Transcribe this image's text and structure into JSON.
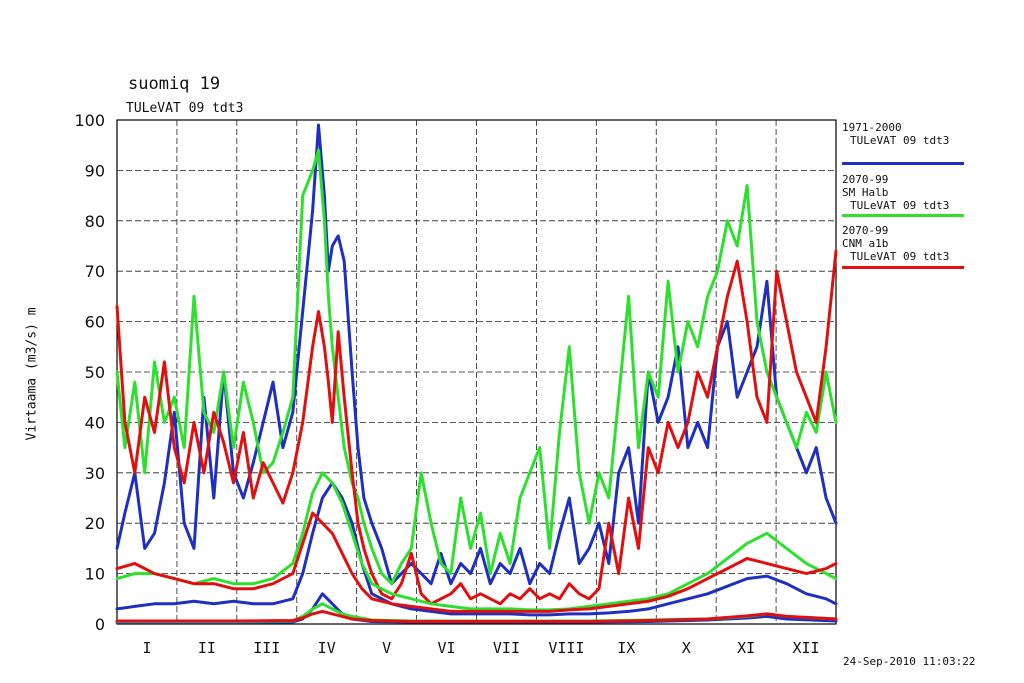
{
  "header": {
    "title": "suomiq 19",
    "subtitle": "TULeVAT 09 tdt3",
    "timestamp": "24-Sep-2010 11:03:22"
  },
  "legend": [
    {
      "lines": [
        "1971-2000",
        "TULeVAT 09 tdt3"
      ],
      "color": "#1f2fbf"
    },
    {
      "lines": [
        "2070-99",
        "SM Halb",
        "TULeVAT 09 tdt3"
      ],
      "color": "#2ee02e"
    },
    {
      "lines": [
        "2070-99",
        "CNM a1b",
        "TULeVAT 09 tdt3"
      ],
      "color": "#e01010"
    }
  ],
  "chart_data": {
    "type": "line",
    "ylabel": "Virtaama (m3/s) m",
    "xlabel": "",
    "ylim": [
      0,
      100
    ],
    "xlim": [
      1,
      365
    ],
    "y_ticks": [
      0,
      10,
      20,
      30,
      40,
      50,
      60,
      70,
      80,
      90,
      100
    ],
    "month_labels": [
      "I",
      "II",
      "III",
      "IV",
      "V",
      "VI",
      "VII",
      "VIII",
      "IX",
      "X",
      "XI",
      "XII"
    ],
    "grid": true,
    "legend_position": "right",
    "series": [
      {
        "name": "1971-2000 TULeVAT 09 tdt3 (max)",
        "color": "#1f2fbf",
        "x": [
          1,
          5,
          10,
          15,
          20,
          25,
          30,
          35,
          40,
          45,
          50,
          55,
          60,
          65,
          70,
          75,
          80,
          85,
          90,
          95,
          100,
          103,
          106,
          108,
          110,
          113,
          116,
          120,
          123,
          126,
          130,
          135,
          140,
          145,
          150,
          155,
          160,
          165,
          170,
          175,
          180,
          185,
          190,
          195,
          200,
          205,
          210,
          215,
          220,
          225,
          230,
          235,
          240,
          245,
          250,
          255,
          260,
          265,
          270,
          275,
          280,
          285,
          290,
          295,
          300,
          305,
          310,
          315,
          320,
          325,
          330,
          335,
          340,
          345,
          350,
          355,
          360,
          365
        ],
        "y": [
          15,
          22,
          30,
          15,
          18,
          28,
          42,
          20,
          15,
          45,
          25,
          50,
          30,
          25,
          32,
          40,
          48,
          35,
          42,
          62,
          82,
          99,
          85,
          70,
          75,
          77,
          72,
          50,
          35,
          25,
          20,
          15,
          8,
          10,
          12,
          10,
          8,
          14,
          8,
          12,
          10,
          15,
          8,
          12,
          10,
          15,
          8,
          12,
          10,
          18,
          25,
          12,
          15,
          20,
          12,
          30,
          35,
          20,
          50,
          40,
          45,
          55,
          35,
          40,
          35,
          55,
          60,
          45,
          50,
          55,
          68,
          45,
          40,
          35,
          30,
          35,
          25,
          20
        ]
      },
      {
        "name": "2070-99 SM Halb TULeVAT 09 tdt3 (max)",
        "color": "#2ee02e",
        "x": [
          1,
          5,
          10,
          15,
          20,
          25,
          30,
          35,
          40,
          45,
          50,
          55,
          60,
          65,
          70,
          75,
          80,
          85,
          90,
          95,
          100,
          103,
          106,
          108,
          110,
          113,
          116,
          120,
          123,
          126,
          130,
          135,
          140,
          145,
          150,
          155,
          160,
          165,
          170,
          175,
          180,
          185,
          190,
          195,
          200,
          205,
          210,
          215,
          220,
          225,
          230,
          235,
          240,
          245,
          250,
          255,
          260,
          265,
          270,
          275,
          280,
          285,
          290,
          295,
          300,
          305,
          310,
          315,
          320,
          325,
          330,
          335,
          340,
          345,
          350,
          355,
          360,
          365
        ],
        "y": [
          50,
          35,
          48,
          30,
          52,
          40,
          45,
          35,
          65,
          42,
          38,
          50,
          35,
          48,
          40,
          30,
          32,
          38,
          45,
          85,
          90,
          94,
          80,
          65,
          55,
          45,
          35,
          28,
          25,
          20,
          15,
          10,
          8,
          12,
          15,
          30,
          20,
          12,
          10,
          25,
          15,
          22,
          10,
          18,
          12,
          25,
          30,
          35,
          15,
          38,
          55,
          30,
          20,
          30,
          25,
          45,
          65,
          35,
          50,
          45,
          68,
          50,
          60,
          55,
          65,
          70,
          80,
          75,
          87,
          60,
          50,
          45,
          40,
          35,
          42,
          38,
          50,
          40
        ]
      },
      {
        "name": "2070-99 CNM a1b TULeVAT 09 tdt3 (max)",
        "color": "#e01010",
        "x": [
          1,
          5,
          10,
          15,
          20,
          25,
          30,
          35,
          40,
          45,
          50,
          55,
          60,
          65,
          70,
          75,
          80,
          85,
          90,
          95,
          100,
          103,
          106,
          108,
          110,
          113,
          116,
          120,
          123,
          126,
          130,
          135,
          140,
          145,
          150,
          155,
          160,
          165,
          170,
          175,
          180,
          185,
          190,
          195,
          200,
          205,
          210,
          215,
          220,
          225,
          230,
          235,
          240,
          245,
          250,
          255,
          260,
          265,
          270,
          275,
          280,
          285,
          290,
          295,
          300,
          305,
          310,
          315,
          320,
          325,
          330,
          335,
          340,
          345,
          350,
          355,
          360,
          365
        ],
        "y": [
          63,
          40,
          30,
          45,
          38,
          52,
          35,
          28,
          40,
          30,
          42,
          36,
          28,
          38,
          25,
          32,
          28,
          24,
          30,
          40,
          55,
          62,
          55,
          48,
          40,
          58,
          45,
          30,
          20,
          15,
          10,
          6,
          5,
          8,
          14,
          6,
          4,
          5,
          6,
          8,
          5,
          6,
          5,
          4,
          6,
          5,
          7,
          5,
          6,
          5,
          8,
          6,
          5,
          7,
          20,
          10,
          25,
          15,
          35,
          30,
          40,
          35,
          40,
          50,
          45,
          55,
          65,
          72,
          60,
          45,
          40,
          70,
          60,
          50,
          45,
          40,
          55,
          74
        ]
      },
      {
        "name": "1971-2000 TULeVAT 09 tdt3 (mean)",
        "color": "#1f2fbf",
        "x": [
          1,
          10,
          20,
          30,
          40,
          50,
          60,
          70,
          80,
          90,
          95,
          100,
          105,
          110,
          115,
          120,
          125,
          130,
          140,
          150,
          160,
          170,
          180,
          190,
          200,
          210,
          220,
          230,
          240,
          250,
          260,
          270,
          280,
          290,
          300,
          310,
          320,
          330,
          340,
          350,
          360,
          365
        ],
        "y": [
          3,
          3.5,
          4,
          4,
          4.5,
          4,
          4.5,
          4,
          4,
          5,
          10,
          18,
          25,
          28,
          25,
          20,
          12,
          6,
          4,
          3,
          2.5,
          2,
          2,
          2,
          2,
          1.8,
          1.8,
          2,
          2,
          2.2,
          2.5,
          3,
          4,
          5,
          6,
          7.5,
          9,
          9.5,
          8,
          6,
          5,
          4
        ]
      },
      {
        "name": "2070-99 SM Halb TULeVAT 09 tdt3 (mean)",
        "color": "#2ee02e",
        "x": [
          1,
          10,
          20,
          30,
          40,
          50,
          60,
          70,
          80,
          90,
          95,
          100,
          105,
          110,
          115,
          120,
          125,
          130,
          140,
          150,
          160,
          170,
          180,
          190,
          200,
          210,
          220,
          230,
          240,
          250,
          260,
          270,
          280,
          290,
          300,
          310,
          320,
          330,
          340,
          350,
          360,
          365
        ],
        "y": [
          9,
          10,
          10,
          9,
          8,
          9,
          8,
          8,
          9,
          12,
          18,
          26,
          30,
          28,
          24,
          18,
          12,
          8,
          6,
          5,
          4,
          3.5,
          3,
          3,
          3,
          2.8,
          2.8,
          3,
          3.5,
          4,
          4.5,
          5,
          6,
          8,
          10,
          13,
          16,
          18,
          15,
          12,
          10,
          9
        ]
      },
      {
        "name": "2070-99 CNM a1b TULeVAT 09 tdt3 (mean)",
        "color": "#e01010",
        "x": [
          1,
          10,
          20,
          30,
          40,
          50,
          60,
          70,
          80,
          90,
          95,
          100,
          105,
          110,
          115,
          120,
          125,
          130,
          140,
          150,
          160,
          170,
          180,
          190,
          200,
          210,
          220,
          230,
          240,
          250,
          260,
          270,
          280,
          290,
          300,
          310,
          320,
          330,
          340,
          350,
          360,
          365
        ],
        "y": [
          11,
          12,
          10,
          9,
          8,
          8,
          7,
          7,
          8,
          10,
          16,
          22,
          20,
          18,
          14,
          10,
          7,
          5,
          4,
          3.5,
          3,
          2.5,
          2.5,
          2.5,
          2.5,
          2.5,
          2.5,
          2.8,
          3,
          3.5,
          4,
          4.5,
          5.5,
          7,
          9,
          11,
          13,
          12,
          11,
          10,
          11,
          12
        ]
      },
      {
        "name": "1971-2000 TULeVAT 09 tdt3 (min)",
        "color": "#1f2fbf",
        "x": [
          1,
          30,
          60,
          90,
          95,
          100,
          105,
          110,
          115,
          120,
          130,
          150,
          180,
          210,
          240,
          270,
          300,
          320,
          330,
          340,
          365
        ],
        "y": [
          0.3,
          0.3,
          0.3,
          0.4,
          1,
          3,
          6,
          4,
          2,
          1,
          0.5,
          0.4,
          0.4,
          0.4,
          0.4,
          0.5,
          0.8,
          1.2,
          1.5,
          1,
          0.6
        ]
      },
      {
        "name": "2070-99 SM Halb TULeVAT 09 tdt3 (min)",
        "color": "#2ee02e",
        "x": [
          1,
          30,
          60,
          90,
          95,
          100,
          105,
          110,
          115,
          120,
          130,
          150,
          180,
          210,
          240,
          270,
          300,
          320,
          330,
          340,
          365
        ],
        "y": [
          0.5,
          0.5,
          0.5,
          0.6,
          1.5,
          3,
          4,
          3,
          2,
          1.5,
          0.8,
          0.6,
          0.6,
          0.6,
          0.6,
          0.8,
          1,
          1.5,
          2,
          1.5,
          1
        ]
      },
      {
        "name": "2070-99 CNM a1b TULeVAT 09 tdt3 (min)",
        "color": "#e01010",
        "x": [
          1,
          30,
          60,
          90,
          95,
          100,
          105,
          110,
          115,
          120,
          130,
          150,
          180,
          210,
          240,
          270,
          300,
          320,
          330,
          340,
          365
        ],
        "y": [
          0.6,
          0.6,
          0.6,
          0.7,
          1.2,
          2,
          2.5,
          2,
          1.5,
          1,
          0.7,
          0.5,
          0.5,
          0.5,
          0.5,
          0.7,
          1,
          1.6,
          2,
          1.5,
          1
        ]
      }
    ]
  }
}
